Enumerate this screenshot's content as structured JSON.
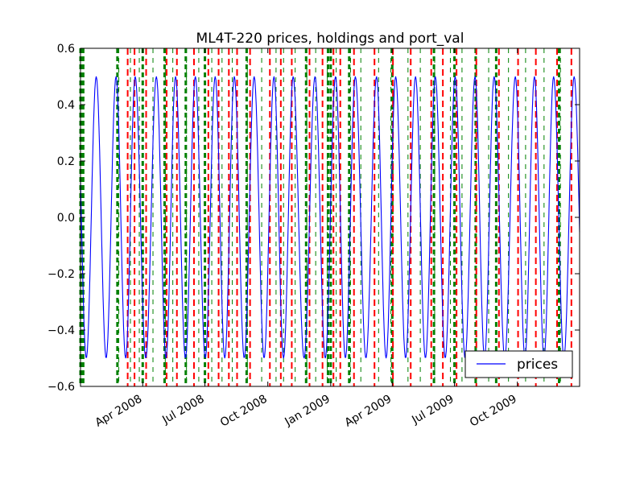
{
  "chart_data": {
    "type": "line",
    "title": "ML4T-220 prices, holdings and port_val",
    "xlabel": "",
    "ylabel": "",
    "x_range": [
      "2008-01-01",
      "2009-12-31"
    ],
    "ylim": [
      -0.6,
      0.6
    ],
    "y_ticks": [
      "0.6",
      "0.4",
      "0.2",
      "0.0",
      "−0.2",
      "−0.4",
      "−0.6"
    ],
    "y_tick_values": [
      0.6,
      0.4,
      0.2,
      0.0,
      -0.2,
      -0.4,
      -0.6
    ],
    "x_ticks": [
      "Apr 2008",
      "Jul 2008",
      "Oct 2008",
      "Jan 2009",
      "Apr 2009",
      "Jul 2009",
      "Oct 2009"
    ],
    "x_tick_dates": [
      "2008-04-01",
      "2008-07-01",
      "2008-10-01",
      "2009-01-01",
      "2009-04-01",
      "2009-07-01",
      "2009-10-01"
    ],
    "grid": false,
    "legend": {
      "placement": "bottom-right",
      "entries": [
        "prices"
      ]
    },
    "series": [
      {
        "name": "prices",
        "color": "#0000ff",
        "style": "sine-like oscillation",
        "amplitude": 0.5,
        "period_trading_days": 20,
        "peak_dates": [
          "2008-01-24",
          "2008-02-22",
          "2008-03-21",
          "2008-04-21",
          "2008-05-19",
          "2008-06-17",
          "2008-07-16",
          "2008-08-13",
          "2008-09-11",
          "2008-10-10",
          "2008-11-07",
          "2008-12-09",
          "2009-01-08",
          "2009-02-06",
          "2009-03-09",
          "2009-04-06",
          "2009-05-05",
          "2009-06-03",
          "2009-07-02",
          "2009-07-31",
          "2009-08-28",
          "2009-09-28",
          "2009-10-26",
          "2009-11-23",
          "2009-12-23"
        ]
      }
    ],
    "vertical_markers": {
      "buy_color": "#008000",
      "sell_color": "#ff0000",
      "sell_dates": [
        "2008-03-10",
        "2008-03-20",
        "2008-04-06",
        "2008-05-06",
        "2008-05-21",
        "2008-06-15",
        "2008-07-06",
        "2008-07-21",
        "2008-08-05",
        "2008-08-17",
        "2008-09-05",
        "2008-10-04",
        "2008-10-20",
        "2008-11-05",
        "2008-12-01",
        "2008-12-20",
        "2009-01-05",
        "2009-01-15",
        "2009-02-04",
        "2009-03-06",
        "2009-04-02",
        "2009-04-28",
        "2009-05-28",
        "2009-06-14",
        "2009-07-04",
        "2009-08-02",
        "2009-09-04",
        "2009-10-02",
        "2009-10-28",
        "2009-11-28",
        "2009-12-19"
      ],
      "buy_dates": [
        "2008-02-26",
        "2008-03-14",
        "2008-03-27",
        "2008-04-16",
        "2008-05-04",
        "2008-05-15",
        "2008-06-04",
        "2008-06-22",
        "2008-07-11",
        "2008-07-26",
        "2008-08-10",
        "2008-09-01",
        "2008-09-22",
        "2008-10-13",
        "2008-10-24",
        "2008-11-10",
        "2008-11-27",
        "2008-12-10",
        "2008-12-27",
        "2009-01-09",
        "2009-01-30",
        "2009-02-14",
        "2009-03-12",
        "2009-03-30",
        "2009-04-24",
        "2009-05-12",
        "2009-06-02",
        "2009-06-25",
        "2009-07-12",
        "2009-08-20",
        "2009-09-18",
        "2009-10-13",
        "2009-11-09",
        "2009-12-03"
      ],
      "dense_buy_dates": [
        "2008-01-01",
        "2008-01-02",
        "2008-01-03",
        "2008-01-05",
        "2008-02-24",
        "2008-04-01",
        "2008-05-03",
        "2008-06-03",
        "2008-07-01",
        "2008-08-31",
        "2008-11-26",
        "2008-12-28",
        "2009-01-01",
        "2009-01-28",
        "2009-04-01",
        "2009-06-01",
        "2009-07-01",
        "2009-08-01",
        "2009-08-31",
        "2009-12-01"
      ]
    }
  }
}
